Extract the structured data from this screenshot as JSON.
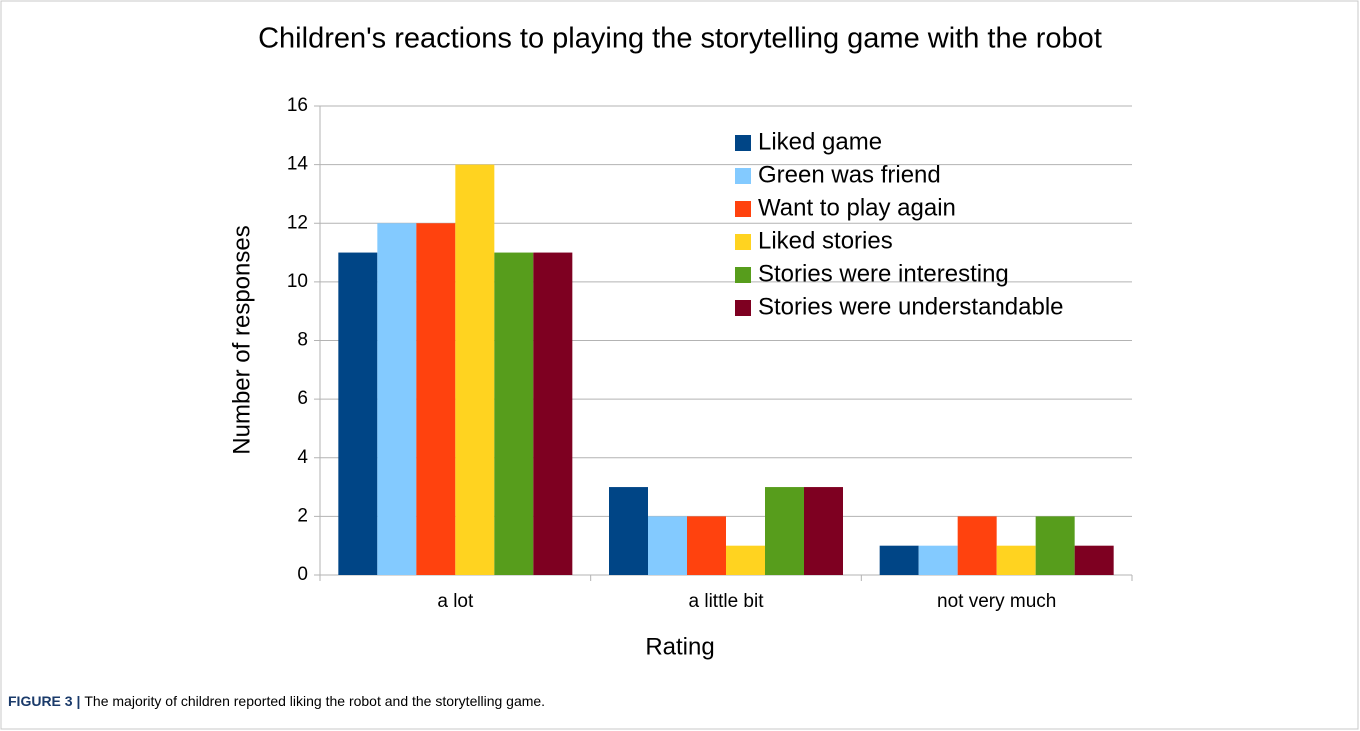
{
  "chart_data": {
    "type": "bar",
    "title": "Children's reactions to playing the storytelling game with the robot",
    "x_label": "Rating",
    "y_label": "Number of responses",
    "categories": [
      "a lot",
      "a little bit",
      "not very much"
    ],
    "series": [
      {
        "name": "Liked game",
        "color": "#004586",
        "values": [
          11,
          3,
          1
        ]
      },
      {
        "name": "Green was friend",
        "color": "#83caff",
        "values": [
          12,
          2,
          1
        ]
      },
      {
        "name": "Want to play again",
        "color": "#ff420e",
        "values": [
          12,
          2,
          2
        ]
      },
      {
        "name": "Liked stories",
        "color": "#ffd320",
        "values": [
          14,
          1,
          1
        ]
      },
      {
        "name": "Stories were interesting",
        "color": "#579d1c",
        "values": [
          11,
          3,
          2
        ]
      },
      {
        "name": "Stories were understandable",
        "color": "#7e0021",
        "values": [
          11,
          3,
          1
        ]
      }
    ],
    "ylim": [
      0,
      16
    ],
    "yticks": [
      0,
      2,
      4,
      6,
      8,
      10,
      12,
      14,
      16
    ],
    "grid": true,
    "legend": "upper right"
  },
  "figure": {
    "label": "FIGURE 3 |",
    "caption": "The majority of children reported liking the robot and the storytelling game."
  }
}
